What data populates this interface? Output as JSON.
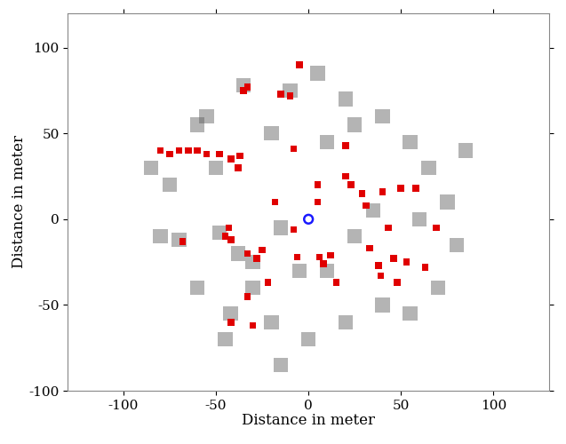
{
  "chart_data": {
    "type": "scatter",
    "xlabel": "Distance in meter",
    "ylabel": "Distance in meter",
    "xlim": [
      -130,
      130
    ],
    "ylim": [
      -100,
      120
    ],
    "xticks": [
      -100,
      -50,
      0,
      50,
      100
    ],
    "yticks": [
      -100,
      -50,
      0,
      50,
      100
    ],
    "grid": false,
    "series": [
      {
        "color": "#5a5a5a",
        "marker": "s",
        "x": [
          -70,
          -48,
          -38,
          -30,
          -10,
          -35,
          -20,
          -60,
          -50,
          -75,
          -80,
          -60,
          -42,
          -45,
          -30,
          -15,
          10,
          25,
          40,
          55,
          65,
          75,
          80,
          70,
          55,
          40,
          20,
          0,
          -15,
          10,
          25,
          35,
          20,
          5,
          -55,
          -85,
          -20,
          60,
          85,
          -5
        ],
        "y": [
          -12,
          -8,
          -20,
          -25,
          75,
          78,
          50,
          55,
          30,
          20,
          -10,
          -40,
          -55,
          -70,
          -40,
          -5,
          45,
          55,
          60,
          45,
          30,
          10,
          -15,
          -40,
          -55,
          -50,
          -60,
          -70,
          -85,
          -30,
          -10,
          5,
          70,
          85,
          60,
          30,
          -60,
          0,
          40,
          -30
        ]
      },
      {
        "color": "#e00000",
        "marker": "s",
        "x": [
          -80,
          -75,
          -70,
          -65,
          -60,
          -55,
          -48,
          -42,
          -37,
          -35,
          -33,
          -15,
          -10,
          -5,
          -38,
          -68,
          -45,
          -42,
          -43,
          -33,
          -28,
          -25,
          -22,
          -33,
          -42,
          -30,
          -18,
          -8,
          -6,
          5,
          6,
          8,
          12,
          15,
          20,
          23,
          29,
          31,
          33,
          38,
          39,
          48,
          43,
          46,
          53,
          63,
          50,
          40,
          58,
          69,
          5,
          20,
          -8
        ],
        "y": [
          40,
          38,
          40,
          40,
          40,
          38,
          38,
          35,
          37,
          75,
          77,
          73,
          72,
          90,
          30,
          -13,
          -10,
          -12,
          -5,
          -20,
          -23,
          -18,
          -37,
          -45,
          -60,
          -62,
          10,
          -6,
          -22,
          10,
          -22,
          -26,
          -21,
          -37,
          25,
          20,
          15,
          8,
          -17,
          -27,
          -33,
          -37,
          -5,
          -23,
          -25,
          -28,
          18,
          16,
          18,
          -5,
          20,
          43,
          41
        ]
      },
      {
        "color": "#1a1aff",
        "marker": "o",
        "x": [
          0
        ],
        "y": [
          0
        ]
      }
    ]
  }
}
